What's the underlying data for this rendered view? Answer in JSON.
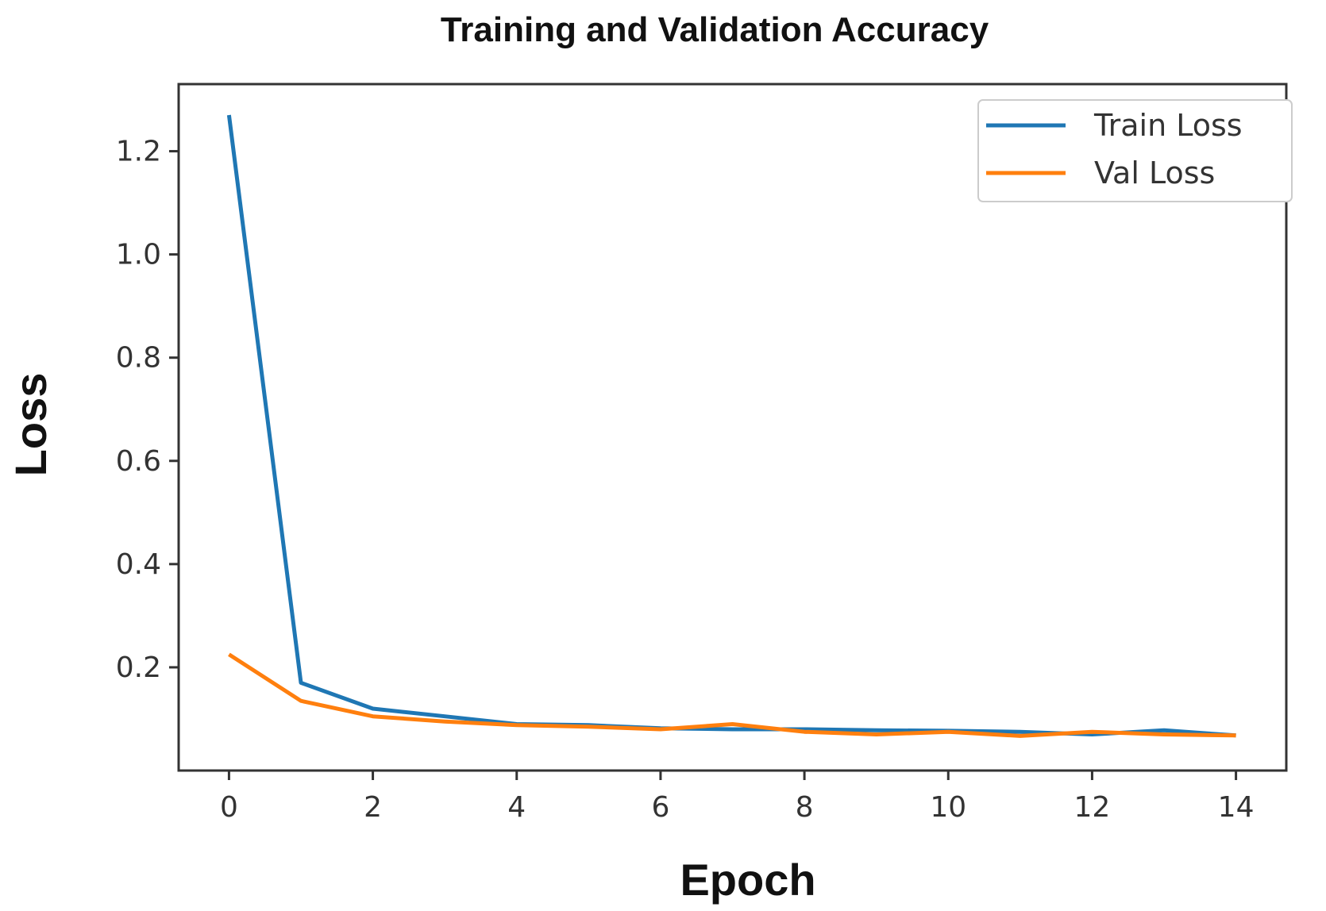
{
  "chart_data": {
    "type": "line",
    "title": "Training and Validation Accuracy",
    "xlabel": "Epoch",
    "ylabel": "Loss",
    "x": [
      0,
      1,
      2,
      3,
      4,
      5,
      6,
      7,
      8,
      9,
      10,
      11,
      12,
      13,
      14
    ],
    "xlim": [
      -0.7,
      14.7
    ],
    "ylim": [
      0.0,
      1.33
    ],
    "xticks": [
      0,
      2,
      4,
      6,
      8,
      10,
      12,
      14
    ],
    "xtick_labels": [
      "0",
      "2",
      "4",
      "6",
      "8",
      "10",
      "12",
      "14"
    ],
    "yticks": [
      0.2,
      0.4,
      0.6,
      0.8,
      1.0,
      1.2
    ],
    "ytick_labels": [
      "0.2",
      "0.4",
      "0.6",
      "0.8",
      "1.0",
      "1.2"
    ],
    "grid": false,
    "legend_position": "top-right",
    "series": [
      {
        "name": "Train Loss",
        "color": "#1f77b4",
        "values": [
          1.27,
          0.17,
          0.12,
          0.105,
          0.09,
          0.088,
          0.082,
          0.08,
          0.08,
          0.078,
          0.077,
          0.075,
          0.07,
          0.078,
          0.068
        ]
      },
      {
        "name": "Val Loss",
        "color": "#ff7f0e",
        "values": [
          0.225,
          0.135,
          0.105,
          0.095,
          0.088,
          0.085,
          0.08,
          0.09,
          0.075,
          0.07,
          0.075,
          0.067,
          0.075,
          0.07,
          0.068
        ]
      }
    ]
  }
}
